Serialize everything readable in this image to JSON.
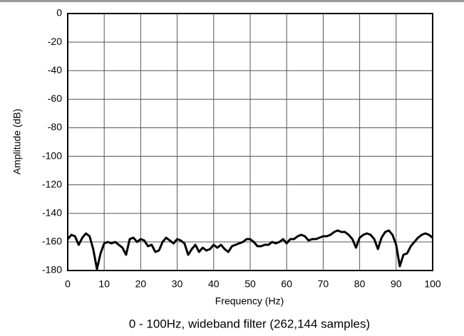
{
  "chart_data": {
    "type": "line",
    "caption": "0 - 100Hz, wideband filter (262,144 samples)",
    "x_label": "Frequency (Hz)",
    "y_label": "Amplitude (dB)",
    "xlim": [
      0,
      100
    ],
    "ylim": [
      -180,
      0
    ],
    "xticks": [
      0,
      10,
      20,
      30,
      40,
      50,
      60,
      70,
      80,
      90,
      100
    ],
    "yticks": [
      0,
      -20,
      -40,
      -60,
      -80,
      -100,
      -120,
      -140,
      -160,
      -180
    ],
    "grid": true,
    "x": [
      0,
      1,
      2,
      3,
      4,
      5,
      6,
      7,
      8,
      9,
      10,
      11,
      12,
      13,
      14,
      15,
      16,
      17,
      18,
      19,
      20,
      21,
      22,
      23,
      24,
      25,
      26,
      27,
      28,
      29,
      30,
      31,
      32,
      33,
      34,
      35,
      36,
      37,
      38,
      39,
      40,
      41,
      42,
      43,
      44,
      45,
      46,
      47,
      48,
      49,
      50,
      51,
      52,
      53,
      54,
      55,
      56,
      57,
      58,
      59,
      60,
      61,
      62,
      63,
      64,
      65,
      66,
      67,
      68,
      69,
      70,
      71,
      72,
      73,
      74,
      75,
      76,
      77,
      78,
      79,
      80,
      81,
      82,
      83,
      84,
      85,
      86,
      87,
      88,
      89,
      90,
      91,
      92,
      93,
      94,
      95,
      96,
      97,
      98,
      99,
      100
    ],
    "series": [
      {
        "color": "#000000",
        "values": [
          -158,
          -155,
          -156,
          -162,
          -157,
          -154,
          -156,
          -165,
          -179,
          -168,
          -161,
          -160,
          -161,
          -160,
          -162,
          -164,
          -169,
          -158,
          -157,
          -160,
          -158,
          -159,
          -163,
          -162,
          -167,
          -166,
          -160,
          -157,
          -159,
          -161,
          -158,
          -159,
          -161,
          -169,
          -165,
          -162,
          -167,
          -164,
          -166,
          -165,
          -162,
          -164,
          -162,
          -165,
          -167,
          -163,
          -162,
          -161,
          -160,
          -158,
          -158,
          -160,
          -163,
          -163,
          -162,
          -162,
          -160,
          -161,
          -160,
          -158,
          -161,
          -158,
          -158,
          -156,
          -155,
          -156,
          -159,
          -158,
          -158,
          -157,
          -156,
          -156,
          -155,
          -153,
          -152,
          -153,
          -153,
          -155,
          -158,
          -164,
          -157,
          -155,
          -154,
          -155,
          -158,
          -165,
          -157,
          -153,
          -152,
          -155,
          -162,
          -177,
          -169,
          -168,
          -163,
          -160,
          -157,
          -155,
          -154,
          -155,
          -157
        ]
      }
    ]
  }
}
